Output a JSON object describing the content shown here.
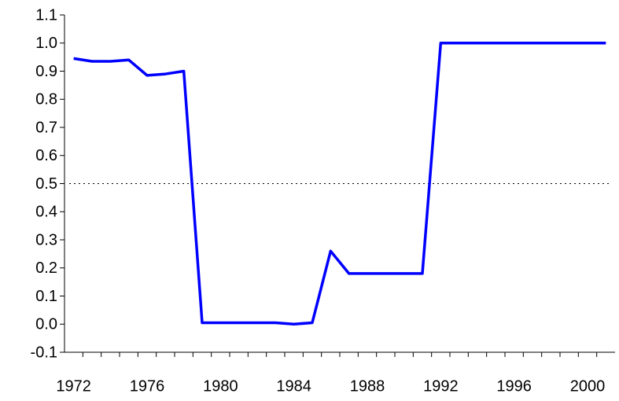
{
  "chart_data": {
    "type": "line",
    "x": [
      1972,
      1973,
      1974,
      1975,
      1976,
      1977,
      1978,
      1979,
      1980,
      1981,
      1982,
      1983,
      1984,
      1985,
      1986,
      1987,
      1988,
      1989,
      1990,
      1991,
      1992,
      1993,
      1994,
      1995,
      1996,
      1997,
      1998,
      1999,
      2000,
      2001
    ],
    "series": [
      {
        "color": "#0000ff",
        "values": [
          0.945,
          0.935,
          0.935,
          0.94,
          0.885,
          0.89,
          0.9,
          0.005,
          0.005,
          0.005,
          0.005,
          0.005,
          0.0,
          0.005,
          0.26,
          0.18,
          0.18,
          0.18,
          0.18,
          0.18,
          1.0,
          1.0,
          1.0,
          1.0,
          1.0,
          1.0,
          1.0,
          1.0,
          1.0,
          1.0
        ]
      }
    ],
    "xlim": [
      1971.5,
      2001.5
    ],
    "xticks": [
      1972,
      1976,
      1980,
      1984,
      1988,
      1992,
      1996,
      2000
    ],
    "ylim": [
      -0.1,
      1.1
    ],
    "yticks": [
      {
        "value": -0.1,
        "label": "-0.1"
      },
      {
        "value": 0,
        "label": "0.0"
      },
      {
        "value": 0.1,
        "label": "0.1"
      },
      {
        "value": 0.2,
        "label": "0.2"
      },
      {
        "value": 0.3,
        "label": "0.3"
      },
      {
        "value": 0.4,
        "label": "0.4"
      },
      {
        "value": 0.5,
        "label": "0.5"
      },
      {
        "value": 0.6,
        "label": "0.6"
      },
      {
        "value": 0.7,
        "label": "0.7"
      },
      {
        "value": 0.8,
        "label": "0.8"
      },
      {
        "value": 0.9,
        "label": "0.9"
      },
      {
        "value": 1.0,
        "label": "1.0"
      },
      {
        "value": 1.1,
        "label": "1.1"
      }
    ],
    "reference_line": 0.5,
    "grid": false
  }
}
